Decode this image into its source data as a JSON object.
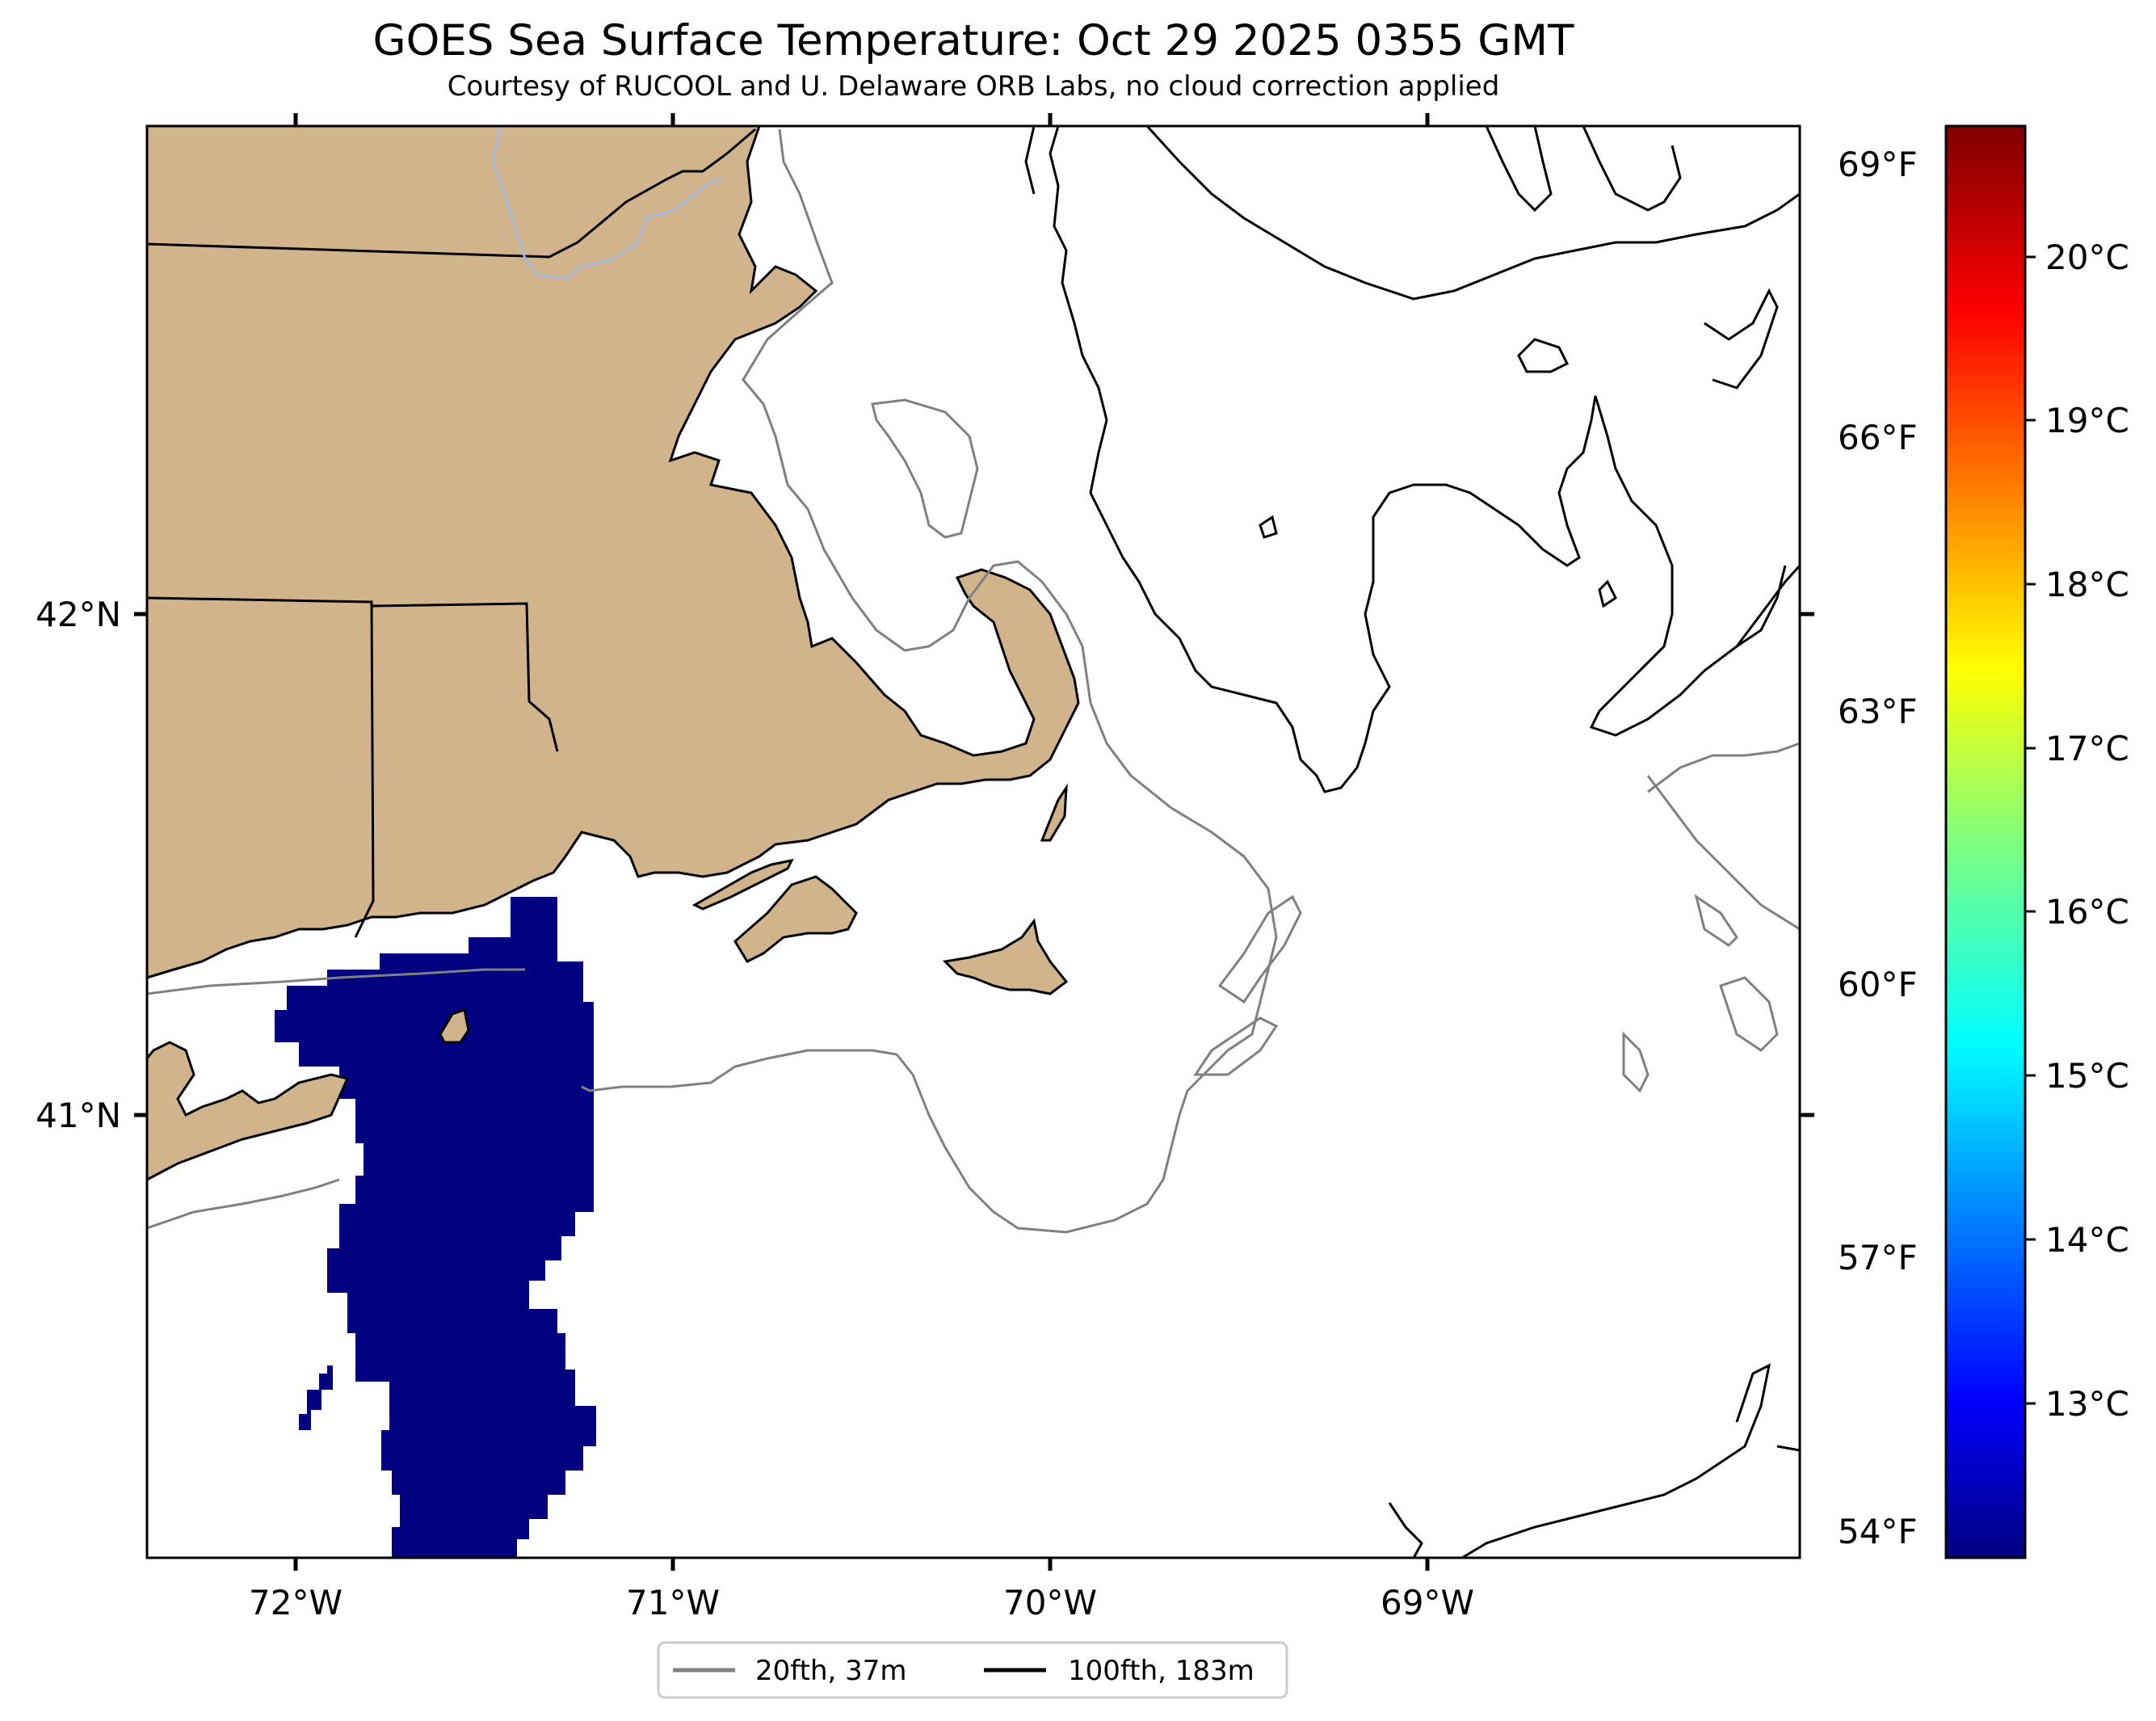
{
  "title": "GOES Sea Surface Temperature: Oct 29 2025 0355 GMT",
  "subtitle": "Courtesy of RUCOOL and U. Delaware ORB Labs, no cloud correction applied",
  "map": {
    "lon_labels": [
      "72°W",
      "71°W",
      "70°W",
      "69°W"
    ],
    "lat_labels": [
      "42°N",
      "41°N"
    ],
    "colors": {
      "land": "#d2b48c",
      "sst_fill": "#000080",
      "coast": "#000000",
      "isobath_20": "#808080",
      "river": "#a8b8d8"
    }
  },
  "colorbar": {
    "fahrenheit_labels": [
      "69°F",
      "66°F",
      "63°F",
      "60°F",
      "57°F",
      "54°F"
    ],
    "celsius_labels": [
      "20°C",
      "19°C",
      "18°C",
      "17°C",
      "16°C",
      "15°C",
      "14°C",
      "13°C"
    ],
    "colormap": "jet"
  },
  "legend": {
    "items": [
      {
        "label": "20fth, 37m",
        "color": "#808080"
      },
      {
        "label": "100fth, 183m",
        "color": "#000000"
      }
    ],
    "placement": "bottom-center"
  }
}
